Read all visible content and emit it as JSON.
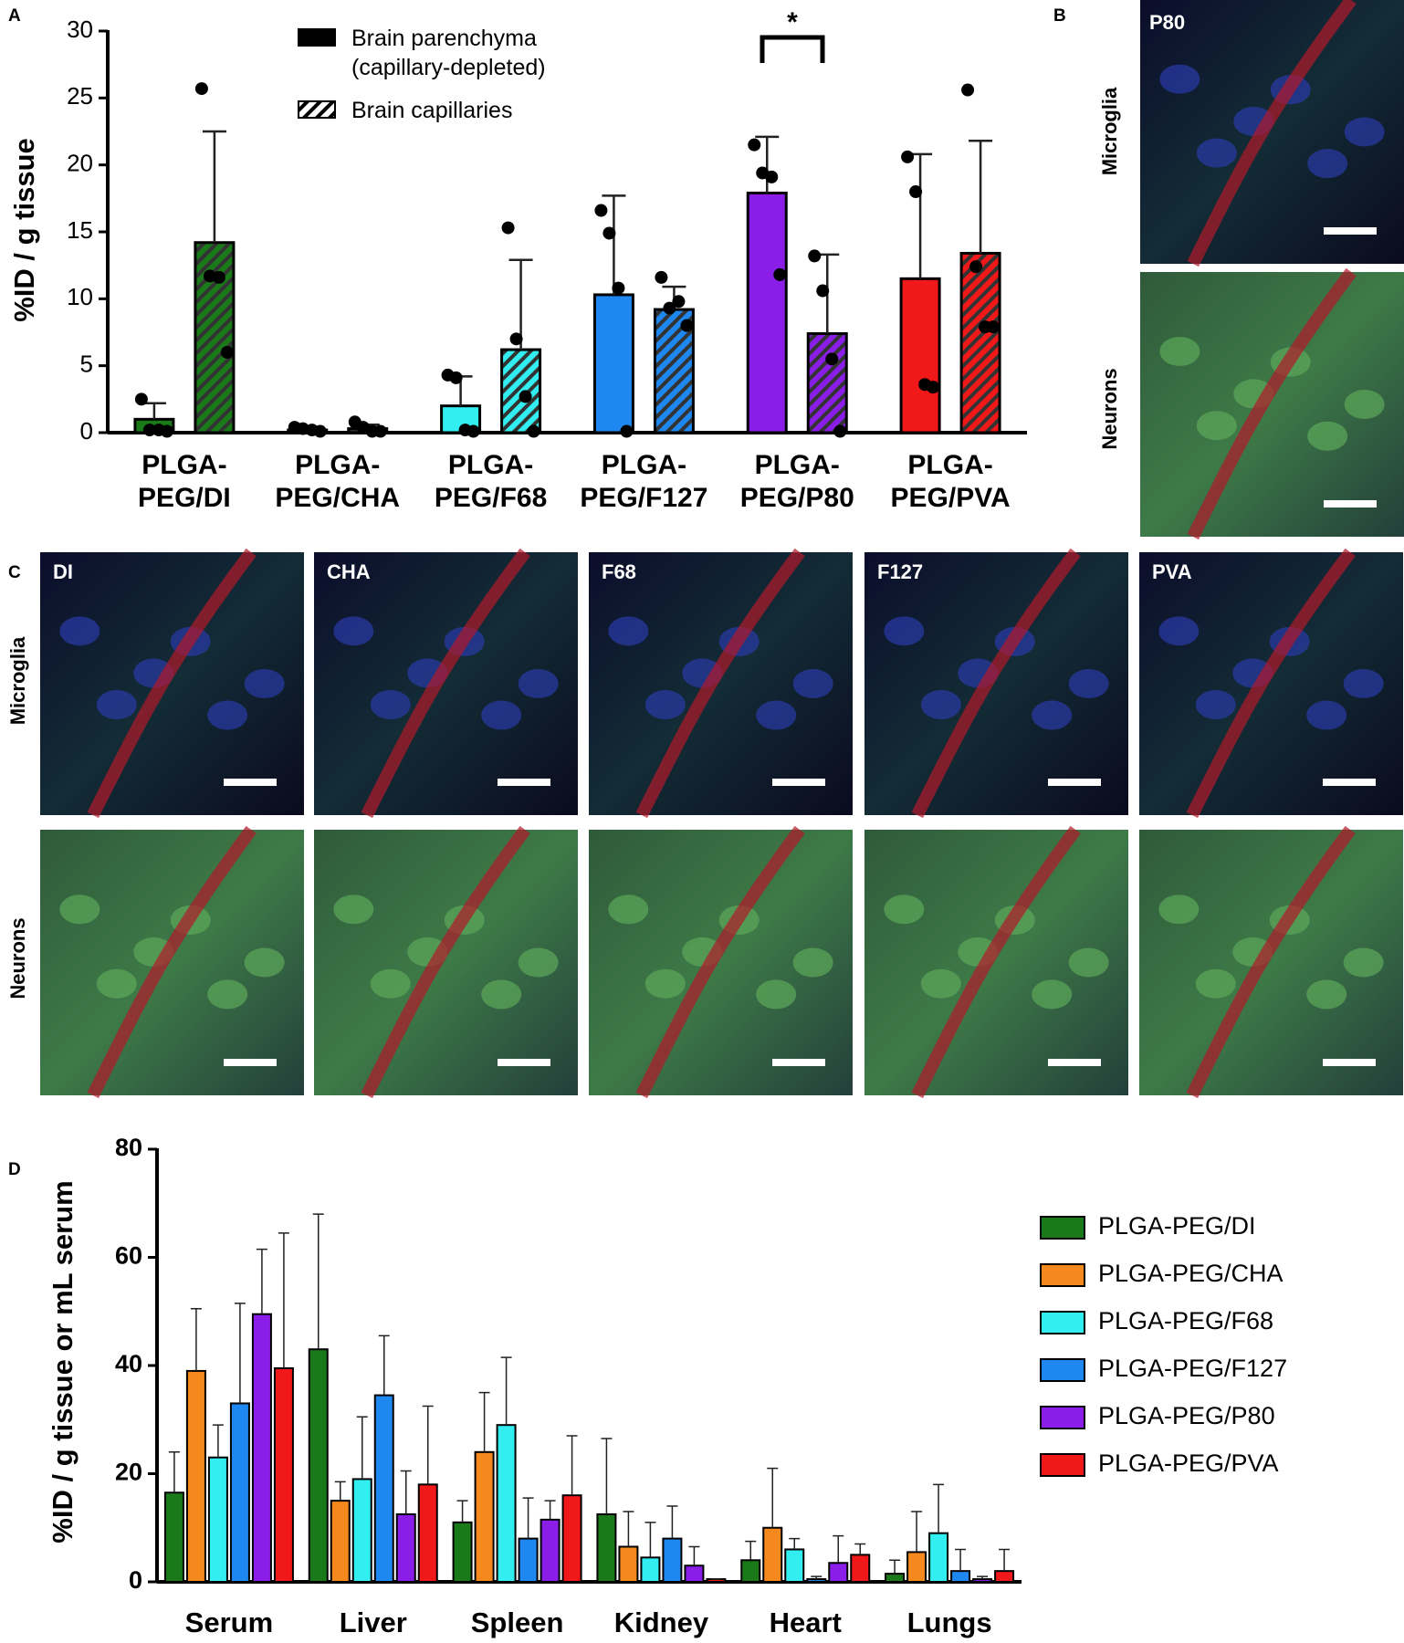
{
  "panel_labels": [
    "A",
    "B",
    "C",
    "D"
  ],
  "panel_b": {
    "title": "P80",
    "rows": [
      "Microglia",
      "Neurons"
    ]
  },
  "panel_c": {
    "columns": [
      "DI",
      "CHA",
      "F68",
      "F127",
      "PVA"
    ],
    "rows": [
      "Microglia",
      "Neurons"
    ]
  },
  "chart_data": [
    {
      "type": "bar",
      "ylabel": "%ID / g tissue",
      "annotation": "*",
      "categories": [
        "PLGA-PEG/DI",
        "PLGA-PEG/CHA",
        "PLGA-PEG/F68",
        "PLGA-PEG/F127",
        "PLGA-PEG/P80",
        "PLGA-PEG/PVA"
      ],
      "colors": [
        "#1a7a1a",
        "#333333",
        "#33eef0",
        "#1e88f0",
        "#8a1ee8",
        "#f01818"
      ],
      "series": [
        {
          "name": "Brain parenchyma\n(capillary-depleted)",
          "pattern": "solid",
          "values": [
            1,
            0.2,
            2,
            10.3,
            17.9,
            11.5
          ],
          "errors": [
            1.2,
            0.2,
            2.2,
            7.4,
            4.2,
            9.3
          ],
          "points": [
            [
              2.5,
              0.2,
              0.2,
              0.1
            ],
            [
              0.4,
              0.3,
              0.2,
              0.1
            ],
            [
              4.3,
              4.1,
              0.2,
              0.1
            ],
            [
              16.6,
              14.9,
              10.8,
              0.1
            ],
            [
              21.5,
              19.4,
              19.1,
              11.8
            ],
            [
              20.6,
              18,
              3.6,
              3.4
            ]
          ]
        },
        {
          "name": "Brain capillaries",
          "pattern": "hatch",
          "values": [
            14.2,
            0.3,
            6.2,
            9.2,
            7.4,
            13.4
          ],
          "errors": [
            8.3,
            0.3,
            6.7,
            1.7,
            5.9,
            8.4
          ],
          "points": [
            [
              25.7,
              11.7,
              11.6,
              6
            ],
            [
              0.8,
              0.4,
              0.1,
              0.1
            ],
            [
              15.3,
              7,
              2.7,
              0.1
            ],
            [
              11.6,
              9.3,
              9.8,
              8
            ],
            [
              13.2,
              10.6,
              5.5,
              0.1
            ],
            [
              25.6,
              12.4,
              7.9,
              7.9
            ]
          ]
        }
      ],
      "ylim": [
        0,
        30
      ],
      "yticks": [
        0,
        5,
        10,
        15,
        20,
        25,
        30
      ]
    },
    {
      "type": "bar",
      "ylabel": "%ID / g tissue or mL serum",
      "categories": [
        "Serum",
        "Liver",
        "Spleen",
        "Kidney",
        "Heart",
        "Lungs"
      ],
      "series": [
        {
          "name": "PLGA-PEG/DI",
          "color": "#1a7a1a",
          "values": [
            16.5,
            43,
            11,
            12.5,
            4,
            1.5
          ],
          "errors": [
            7.5,
            25,
            4,
            14,
            3.5,
            2.5
          ]
        },
        {
          "name": "PLGA-PEG/CHA",
          "color": "#f5891e",
          "values": [
            39,
            15,
            24,
            6.5,
            10,
            5.5
          ],
          "errors": [
            11.5,
            3.5,
            11,
            6.5,
            11,
            7.5
          ]
        },
        {
          "name": "PLGA-PEG/F68",
          "color": "#33eef0",
          "values": [
            23,
            19,
            29,
            4.5,
            6,
            9
          ],
          "errors": [
            6,
            11.5,
            12.5,
            6.5,
            2,
            9
          ]
        },
        {
          "name": "PLGA-PEG/F127",
          "color": "#1e88f0",
          "values": [
            33,
            34.5,
            8,
            8,
            0.5,
            2
          ],
          "errors": [
            18.5,
            11,
            7.5,
            6,
            0.5,
            4
          ]
        },
        {
          "name": "PLGA-PEG/P80",
          "color": "#8a1ee8",
          "values": [
            49.5,
            12.5,
            11.5,
            3,
            3.5,
            0.5
          ],
          "errors": [
            12,
            8,
            3.5,
            3.5,
            5,
            0.5
          ]
        },
        {
          "name": "PLGA-PEG/PVA",
          "color": "#f01818",
          "values": [
            39.5,
            18,
            16,
            0.5,
            5,
            2
          ],
          "errors": [
            25,
            14.5,
            11,
            0,
            2,
            4
          ]
        }
      ],
      "ylim": [
        0,
        80
      ],
      "yticks": [
        0,
        20,
        40,
        60,
        80
      ]
    }
  ]
}
